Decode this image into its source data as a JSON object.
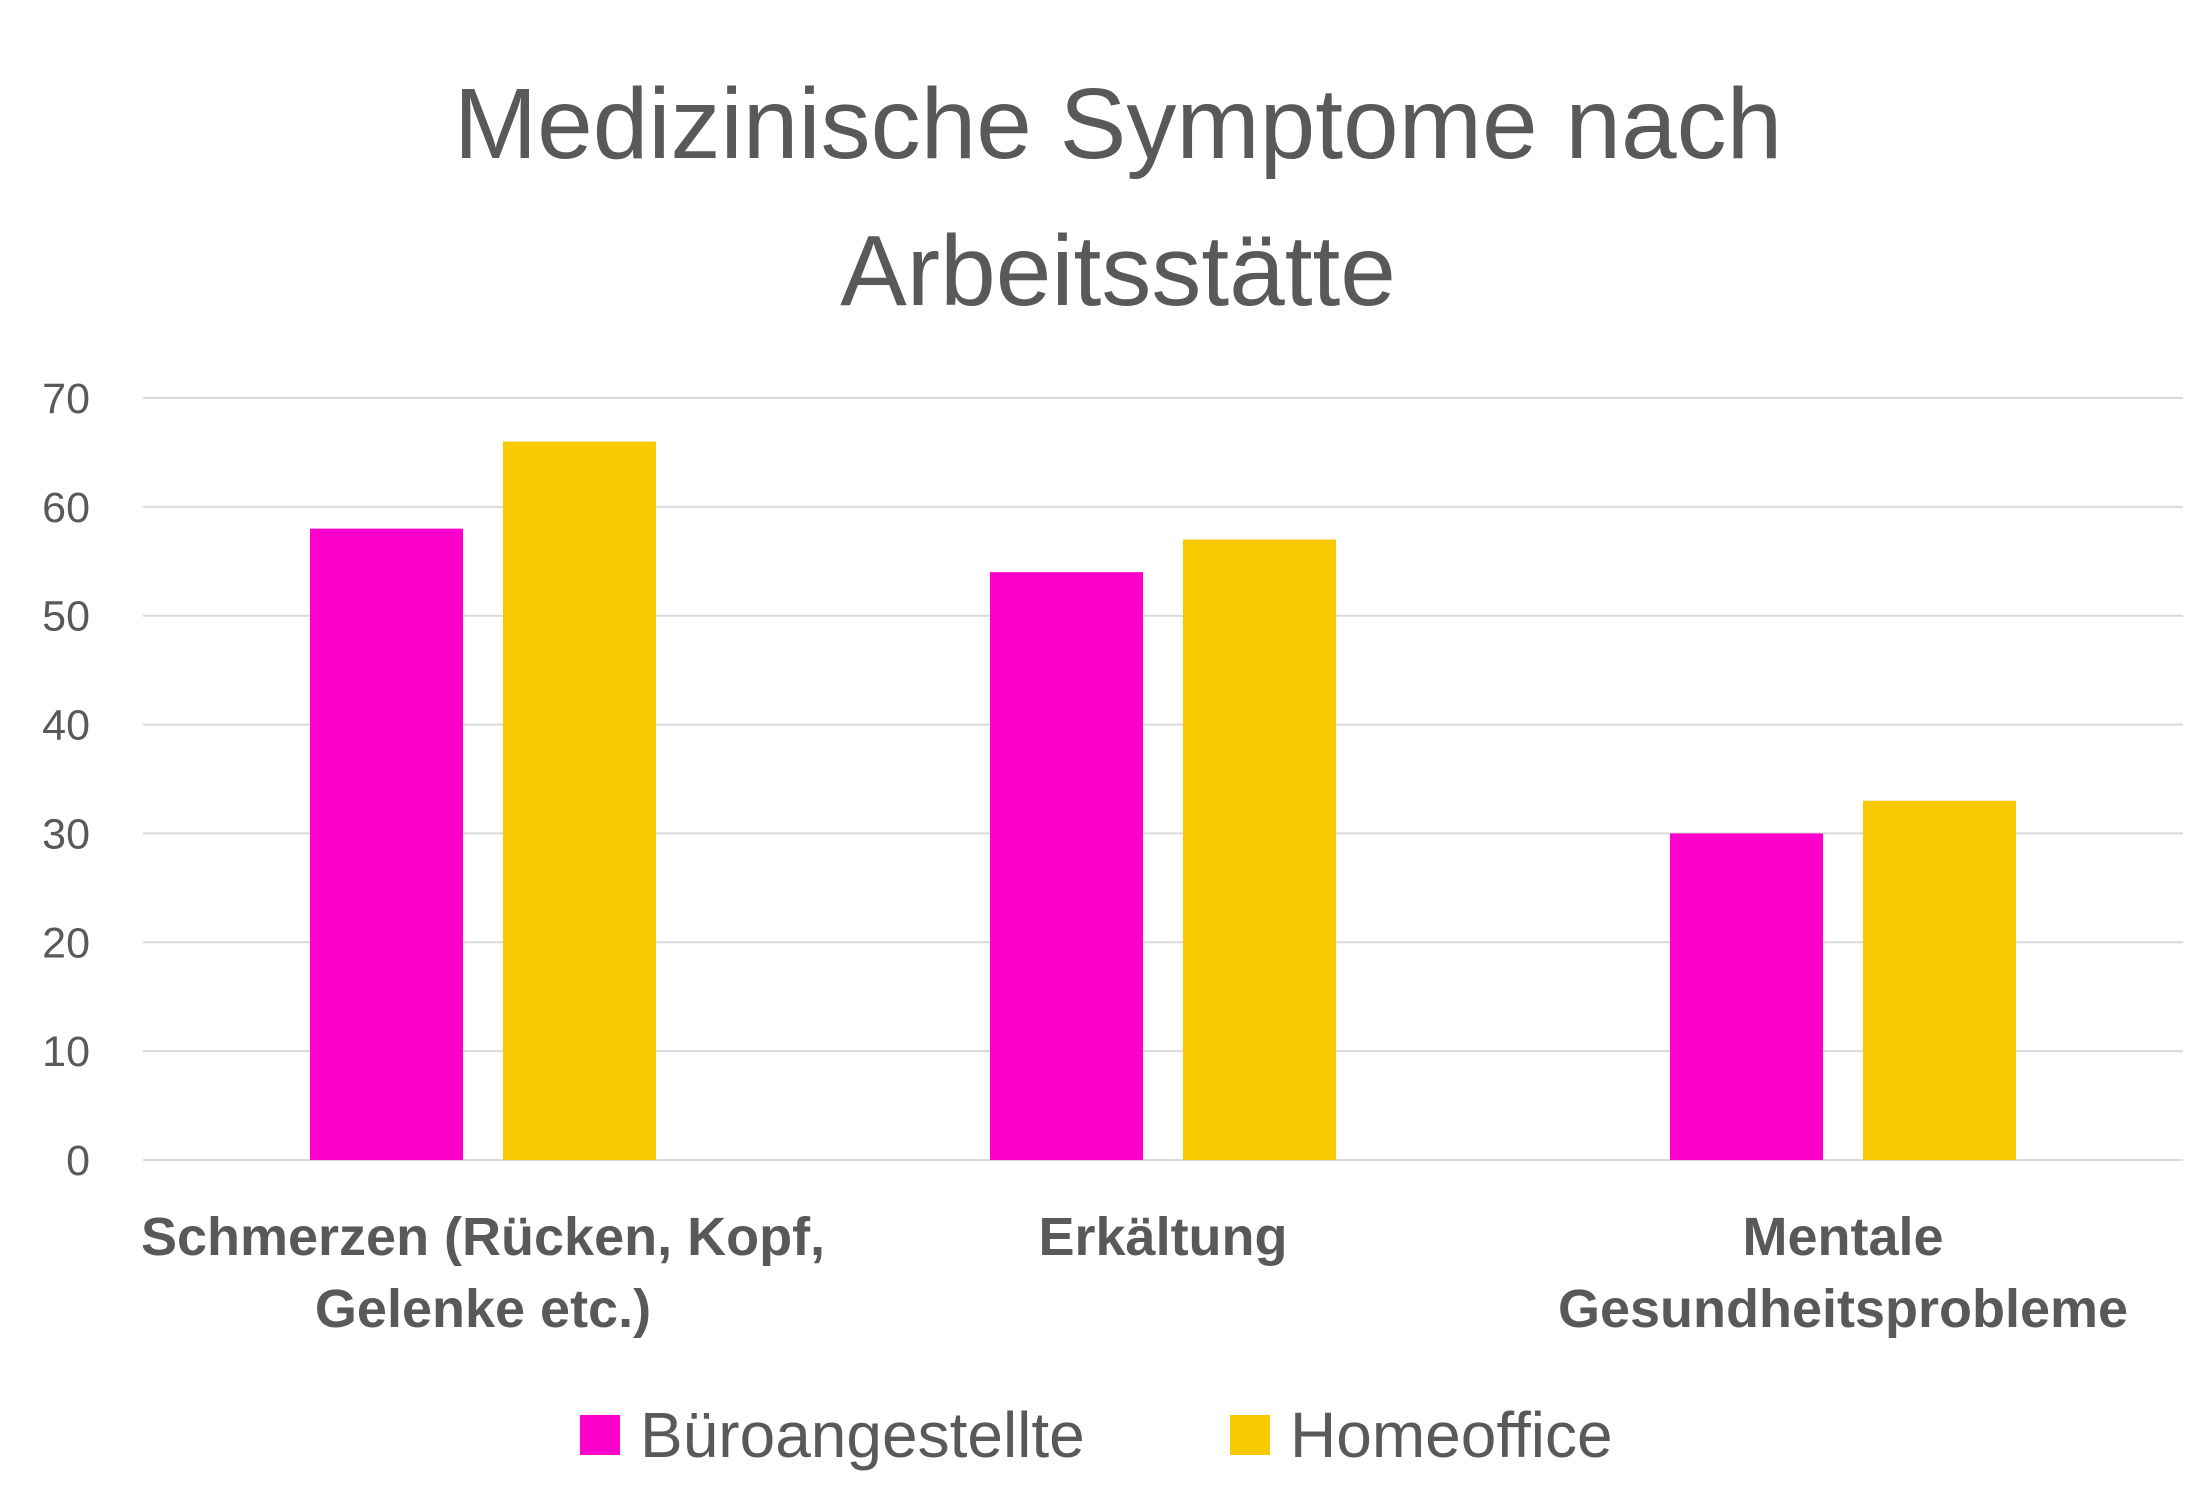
{
  "chart_data": {
    "type": "bar",
    "title": [
      "Medizinische Symptome nach",
      "Arbeitsstätte"
    ],
    "categories": [
      [
        "Schmerzen (Rücken, Kopf,",
        "Gelenke etc.)"
      ],
      [
        "Erkältung"
      ],
      [
        "Mentale",
        "Gesundheitsprobleme"
      ]
    ],
    "series": [
      {
        "name": "Büroangestellte",
        "color": "#ff00cc",
        "values": [
          58,
          54,
          30
        ]
      },
      {
        "name": "Homeoffice",
        "color": "#f9c900",
        "values": [
          66,
          57,
          33
        ]
      }
    ],
    "xlabel": "",
    "ylabel": "",
    "ylim": [
      0,
      70
    ],
    "yticks": [
      0,
      10,
      20,
      30,
      40,
      50,
      60,
      70
    ],
    "grid": true,
    "legend": "bottom"
  }
}
